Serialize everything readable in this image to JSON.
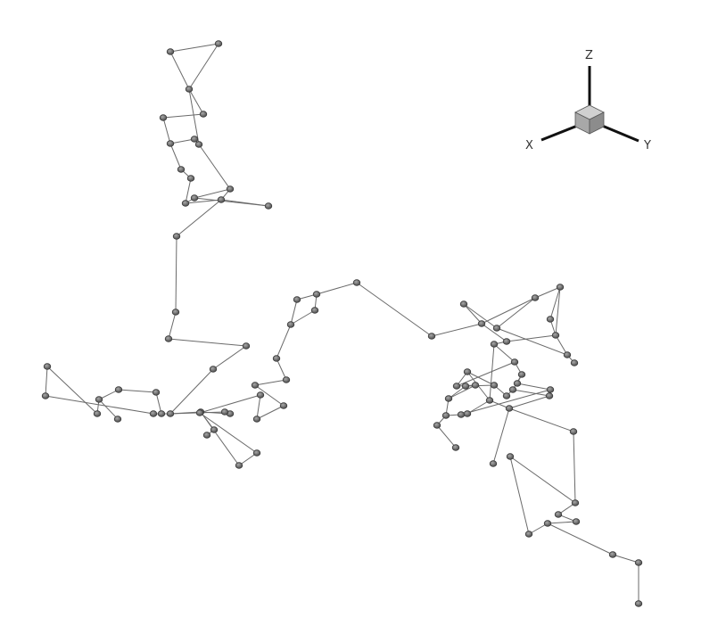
{
  "viewer": {
    "background": "#ffffff",
    "atom_color": "#6e6e6e",
    "bond_color": "#6a6a6a"
  },
  "triad": {
    "axes": [
      {
        "id": "z",
        "label": "Z"
      },
      {
        "id": "x",
        "label": "X"
      },
      {
        "id": "y",
        "label": "Y"
      }
    ],
    "cube_color": "#b8b8b8"
  }
}
